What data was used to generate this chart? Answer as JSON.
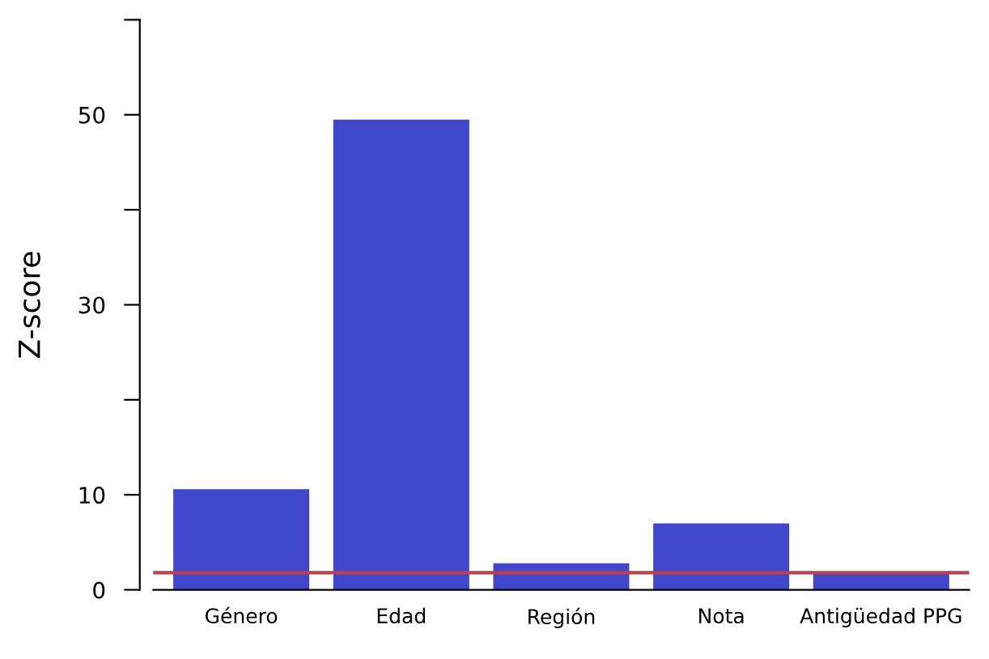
{
  "chart_data": {
    "type": "bar",
    "ylabel": "Z-score",
    "categories": [
      "Género",
      "Edad",
      "Región",
      "Nota",
      "Antigüedad PPG"
    ],
    "values": [
      10.6,
      49.5,
      2.8,
      7.0,
      1.8
    ],
    "color": "#3f48cc",
    "ylim": [
      0,
      60
    ],
    "yticks": [
      0,
      10,
      {
        "value": 20,
        "label": null
      },
      30,
      {
        "value": 40,
        "label": null
      },
      50,
      {
        "value": 60,
        "label": null
      }
    ],
    "ref_lines": [
      {
        "axis": "y",
        "value": 1.8,
        "color": "#c0404a"
      }
    ],
    "grid": false,
    "legend": false
  }
}
